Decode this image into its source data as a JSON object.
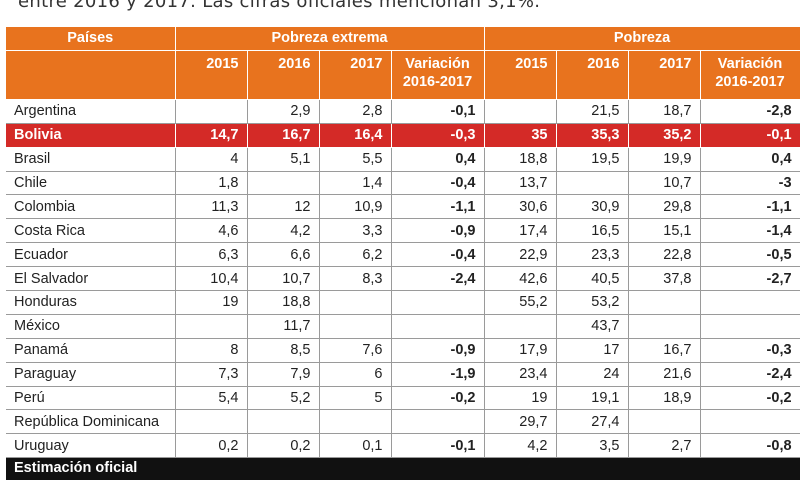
{
  "intro_text": "entre 2016 y 2017. Las cifras oficiales mencionan 3,1%.",
  "colors": {
    "header": "#e8731e",
    "highlight": "#d42a27",
    "footer": "#111111"
  },
  "table": {
    "col_country": "Países",
    "group_extreme": "Pobreza extrema",
    "group_poverty": "Pobreza",
    "years": [
      "2015",
      "2016",
      "2017"
    ],
    "variation_label": "Variación 2016-2017",
    "rows": [
      {
        "country": "Argentina",
        "e2015": "",
        "e2016": "2,9",
        "e2017": "2,8",
        "evar": "-0,1",
        "p2015": "",
        "p2016": "21,5",
        "p2017": "18,7",
        "pvar": "-2,8"
      },
      {
        "country": "Bolivia",
        "e2015": "14,7",
        "e2016": "16,7",
        "e2017": "16,4",
        "evar": "-0,3",
        "p2015": "35",
        "p2016": "35,3",
        "p2017": "35,2",
        "pvar": "-0,1"
      },
      {
        "country": "Brasil",
        "e2015": "4",
        "e2016": "5,1",
        "e2017": "5,5",
        "evar": "0,4",
        "p2015": "18,8",
        "p2016": "19,5",
        "p2017": "19,9",
        "pvar": "0,4"
      },
      {
        "country": "Chile",
        "e2015": "1,8",
        "e2016": "",
        "e2017": "1,4",
        "evar": "-0,4",
        "p2015": "13,7",
        "p2016": "",
        "p2017": "10,7",
        "pvar": "-3"
      },
      {
        "country": "Colombia",
        "e2015": "11,3",
        "e2016": "12",
        "e2017": "10,9",
        "evar": "-1,1",
        "p2015": "30,6",
        "p2016": "30,9",
        "p2017": "29,8",
        "pvar": "-1,1"
      },
      {
        "country": "Costa Rica",
        "e2015": "4,6",
        "e2016": "4,2",
        "e2017": "3,3",
        "evar": "-0,9",
        "p2015": "17,4",
        "p2016": "16,5",
        "p2017": "15,1",
        "pvar": "-1,4"
      },
      {
        "country": "Ecuador",
        "e2015": "6,3",
        "e2016": "6,6",
        "e2017": "6,2",
        "evar": "-0,4",
        "p2015": "22,9",
        "p2016": "23,3",
        "p2017": "22,8",
        "pvar": "-0,5"
      },
      {
        "country": "El Salvador",
        "e2015": "10,4",
        "e2016": "10,7",
        "e2017": "8,3",
        "evar": "-2,4",
        "p2015": "42,6",
        "p2016": "40,5",
        "p2017": "37,8",
        "pvar": "-2,7"
      },
      {
        "country": "Honduras",
        "e2015": "19",
        "e2016": "18,8",
        "e2017": "",
        "evar": "",
        "p2015": "55,2",
        "p2016": "53,2",
        "p2017": "",
        "pvar": ""
      },
      {
        "country": "México",
        "e2015": "",
        "e2016": "11,7",
        "e2017": "",
        "evar": "",
        "p2015": "",
        "p2016": "43,7",
        "p2017": "",
        "pvar": ""
      },
      {
        "country": "Panamá",
        "e2015": "8",
        "e2016": "8,5",
        "e2017": "7,6",
        "evar": "-0,9",
        "p2015": "17,9",
        "p2016": "17",
        "p2017": "16,7",
        "pvar": "-0,3"
      },
      {
        "country": "Paraguay",
        "e2015": "7,3",
        "e2016": "7,9",
        "e2017": "6",
        "evar": "-1,9",
        "p2015": "23,4",
        "p2016": "24",
        "p2017": "21,6",
        "pvar": "-2,4"
      },
      {
        "country": "Perú",
        "e2015": "5,4",
        "e2016": "5,2",
        "e2017": "5",
        "evar": "-0,2",
        "p2015": "19",
        "p2016": "19,1",
        "p2017": "18,9",
        "pvar": "-0,2"
      },
      {
        "country": "República Dominicana",
        "e2015": "",
        "e2016": "",
        "e2017": "",
        "evar": "",
        "p2015": "29,7",
        "p2016": "27,4",
        "p2017": "",
        "pvar": ""
      },
      {
        "country": "Uruguay",
        "e2015": "0,2",
        "e2016": "0,2",
        "e2017": "0,1",
        "evar": "-0,1",
        "p2015": "4,2",
        "p2016": "3,5",
        "p2017": "2,7",
        "pvar": "-0,8"
      }
    ],
    "footer_note": "Estimación oficial"
  }
}
